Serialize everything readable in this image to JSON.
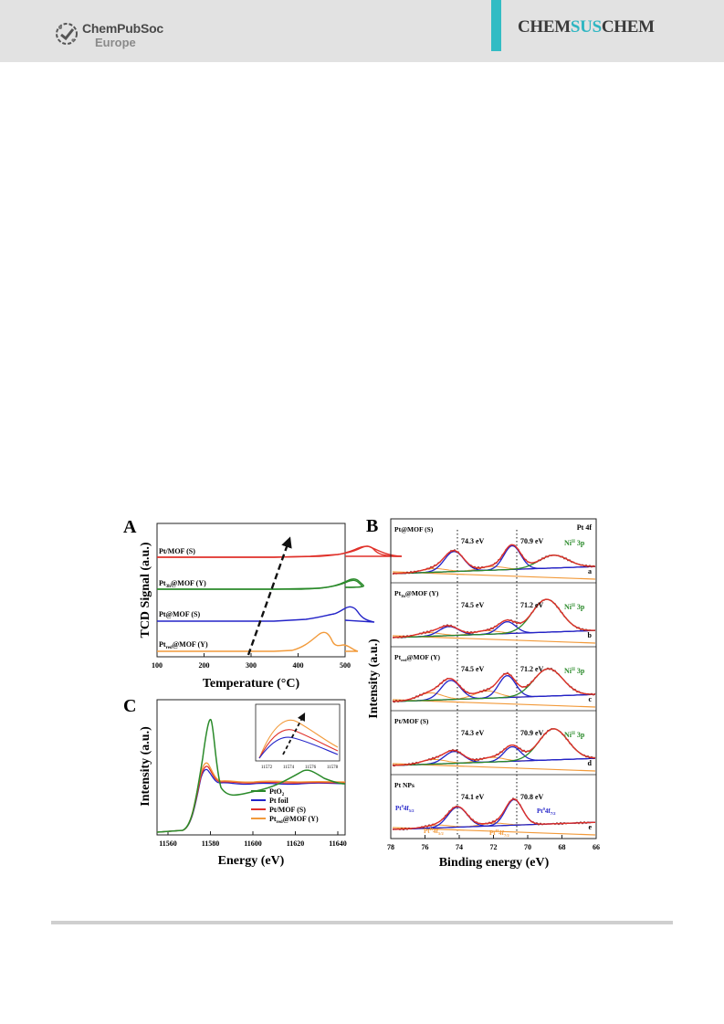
{
  "header": {
    "publisher_line1": "ChemPubSoc",
    "publisher_line2": "Europe",
    "journal_pre": "CHEM",
    "journal_accent": "SUS",
    "journal_post": "CHEM",
    "accent_color": "#32bcc4"
  },
  "colors": {
    "red": "#e0312a",
    "green": "#2a8a2a",
    "blue": "#2323c8",
    "orange": "#f29a3a",
    "dark_red": "#7a1010"
  },
  "figure": {
    "panel_a": {
      "letter": "A",
      "ylabel": "TCD Signal (a.u.)",
      "xlabel": "Temperature (°C)",
      "xticks": [
        "100",
        "200",
        "300",
        "400",
        "500"
      ],
      "labels": [
        "Pt/MOF (S)",
        "Pt",
        "@MOF (Y)",
        "Pt@MOF (S)",
        "Pt",
        "@MOF (Y)"
      ],
      "subs": [
        "3h",
        "red"
      ]
    },
    "panel_b": {
      "letter": "B",
      "ylabel": "Intensity (a.u.)",
      "xlabel": "Binding energy (eV)",
      "xticks": [
        "78",
        "76",
        "74",
        "72",
        "70",
        "68",
        "66"
      ],
      "title": "Pt 4f",
      "rows": [
        {
          "sample": "Pt@MOF (S)",
          "peak1": "74.3 eV",
          "peak2": "70.9 eV",
          "ni": "Ni",
          "ni_sup": "II",
          "ni_tail": " 3p",
          "tag": "a"
        },
        {
          "sample": "Pt",
          "sample_sub": "3h",
          "sample_tail": "@MOF (Y)",
          "peak1": "74.5 eV",
          "peak2": "71.2 eV",
          "ni": "Ni",
          "ni_sup": "II",
          "ni_tail": " 3p",
          "tag": "b"
        },
        {
          "sample": "Pt",
          "sample_sub": "red",
          "sample_tail": "@MOF (Y)",
          "peak1": "74.5 eV",
          "peak2": "71.2 eV",
          "ni": "Ni",
          "ni_sup": "II",
          "ni_tail": " 3p",
          "tag": "c"
        },
        {
          "sample": "Pt/MOF (S)",
          "peak1": "74.3 eV",
          "peak2": "70.9 eV",
          "ni": "Ni",
          "ni_sup": "II",
          "ni_tail": " 3p",
          "tag": "d"
        },
        {
          "sample": "Pt NPs",
          "peak1": "74.1 eV",
          "peak2": "70.8 eV",
          "tag": "e"
        }
      ],
      "pt0_left": "Pt",
      "pt0_left_sup": "0",
      "pt0_left_tail": "4f",
      "pt0_left_sub": "5/2",
      "pt0_right": "Pt",
      "pt0_right_sup": "0",
      "pt0_right_tail": "4f",
      "pt0_right_sub": "7/2",
      "ptii_left": "Pt",
      "ptii_left_sup": "II",
      "ptii_left_tail": "4f",
      "ptii_left_sub": "5/2",
      "ptii_right": "Pt",
      "ptii_right_sup": "II",
      "ptii_right_tail": "4f",
      "ptii_right_sub": "7/2"
    },
    "panel_c": {
      "letter": "C",
      "ylabel": "Intensity (a.u.)",
      "xlabel": "Energy (eV)",
      "xticks": [
        "11560",
        "11580",
        "11600",
        "11620",
        "11640"
      ],
      "inset_xticks": [
        "11572",
        "11574",
        "11576",
        "11578"
      ],
      "legend": [
        {
          "label": "PtO",
          "sub": "2",
          "color": "green"
        },
        {
          "label": "Pt foil",
          "color": "blue"
        },
        {
          "label": "Pt/MOF (S)",
          "color": "red"
        },
        {
          "label": "Pt",
          "sub": "red",
          "tail": "@MOF (Y)",
          "color": "orange"
        }
      ]
    }
  }
}
